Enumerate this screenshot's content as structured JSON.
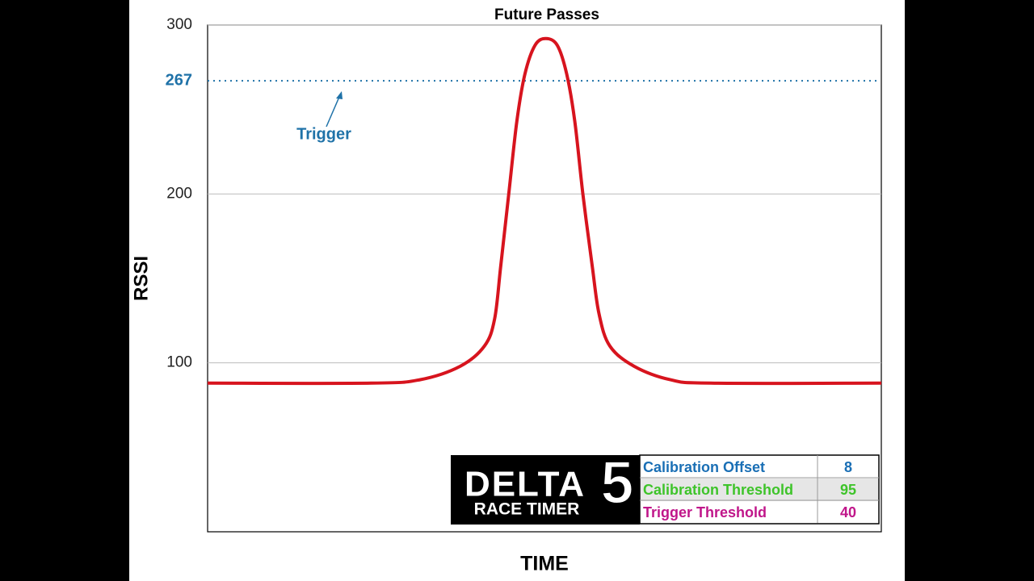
{
  "chart_data": {
    "type": "line",
    "title": "Future Passes",
    "ylabel": "RSSI",
    "xlabel": "TIME",
    "x": [
      0,
      24.3,
      31.5,
      37.5,
      41.1,
      42.6,
      43.5,
      44.7,
      45.9,
      47.1,
      48.6,
      50.2,
      51.9,
      53.3,
      54.5,
      55.7,
      57.1,
      58.1,
      59.7,
      63.3,
      68.7,
      74.7,
      100
    ],
    "values": [
      88,
      88,
      90,
      98,
      110,
      126,
      157,
      200,
      243,
      271,
      288,
      292,
      288,
      271,
      243,
      200,
      157,
      129,
      110,
      98,
      90,
      88,
      88
    ],
    "color": "#d7141e",
    "xlim": [
      0,
      100
    ],
    "ylim": [
      0,
      300
    ],
    "yticks": [
      100,
      200,
      300
    ],
    "grid": true,
    "trigger": {
      "text": "Trigger",
      "value": 267,
      "color": "#1f72a8"
    },
    "logo": {
      "text": "DELTA",
      "number": "5",
      "subtitle": "RACE TIMER"
    },
    "table": [
      {
        "name": "Calibration Offset",
        "value": 8,
        "color": "#1a6fb5"
      },
      {
        "name": "Calibration Threshold",
        "value": 95,
        "color": "#3ec42a"
      },
      {
        "name": "Trigger Threshold",
        "value": 40,
        "color": "#c0168a"
      }
    ]
  }
}
